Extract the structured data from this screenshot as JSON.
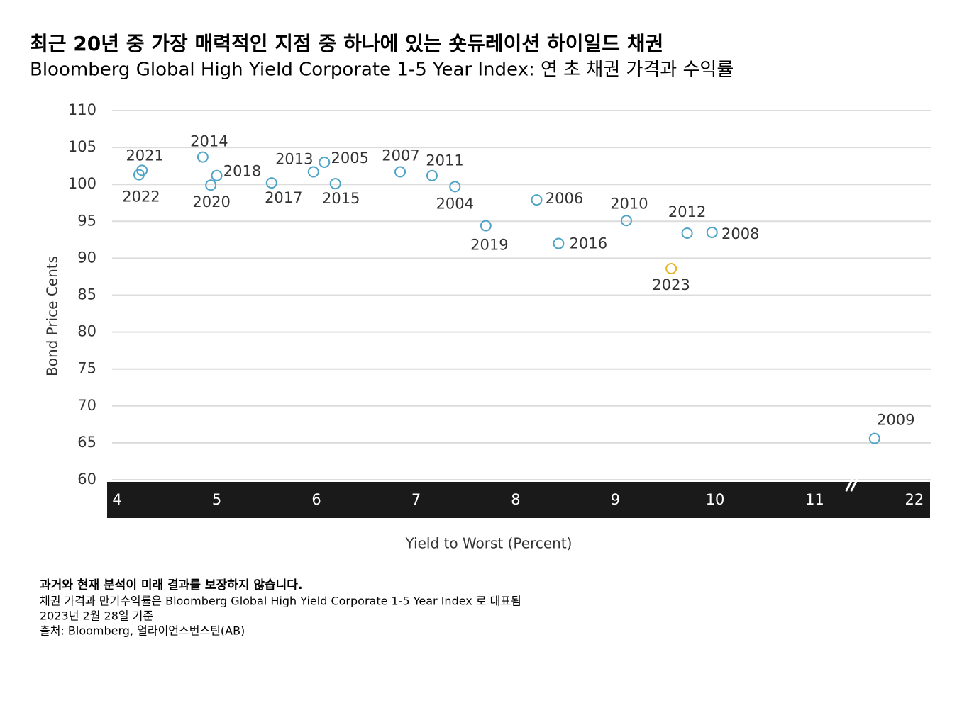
{
  "chart_data": {
    "type": "scatter",
    "title": "최근 20년 중 가장 매력적인 지점 중 하나에 있는 숏듀레이션 하이일드 채권",
    "subtitle": "Bloomberg Global High Yield Corporate 1-5 Year Index: 연 초 채권 가격과 수익률",
    "xlabel": "Yield to Worst (Percent)",
    "ylabel": "Bond Price Cents",
    "labels": [
      "2021",
      "2022",
      "2014",
      "2018",
      "2020",
      "2017",
      "2013",
      "2005",
      "2015",
      "2007",
      "2011",
      "2004",
      "2019",
      "2006",
      "2016",
      "2010",
      "2012",
      "2008",
      "2023",
      "2009"
    ],
    "x": [
      4.25,
      4.22,
      4.86,
      5.0,
      4.94,
      5.55,
      5.97,
      6.08,
      6.19,
      6.84,
      7.16,
      7.39,
      7.7,
      8.21,
      8.43,
      9.11,
      9.72,
      9.97,
      9.56,
      21.6
    ],
    "y": [
      101.9,
      101.3,
      103.7,
      101.2,
      99.9,
      100.2,
      101.7,
      103.0,
      100.1,
      101.7,
      101.2,
      99.7,
      94.4,
      97.9,
      92.0,
      95.1,
      93.4,
      93.5,
      88.6,
      65.6
    ],
    "colors": [
      "#4fa3c7",
      "#4fa3c7",
      "#4fa3c7",
      "#4fa3c7",
      "#4fa3c7",
      "#4fa3c7",
      "#4fa3c7",
      "#4fa3c7",
      "#4fa3c7",
      "#4fa3c7",
      "#4fa3c7",
      "#4fa3c7",
      "#4fa3c7",
      "#4fa3c7",
      "#4fa3c7",
      "#4fa3c7",
      "#4fa3c7",
      "#4fa3c7",
      "#e8b420",
      "#4fa3c7"
    ],
    "xlim": [
      3.9,
      22.15
    ],
    "x_break": [
      11.4,
      21.4
    ],
    "xticks": [
      4,
      5,
      6,
      7,
      8,
      9,
      10,
      11,
      22
    ],
    "ylim": [
      60,
      110
    ],
    "yticks": [
      60,
      65,
      70,
      75,
      80,
      85,
      90,
      95,
      100,
      105,
      110
    ],
    "grid": true
  },
  "notes": [
    "과거와 현재 분석이 미래 결과를 보장하지 않습니다.",
    "채권 가격과 만기수익률은 Bloomberg Global High Yield Corporate 1-5 Year Index 로 대표됨",
    "2023년 2월 28일 기준",
    "출처: Bloomberg, 얼라이언스번스틴(AB)"
  ]
}
